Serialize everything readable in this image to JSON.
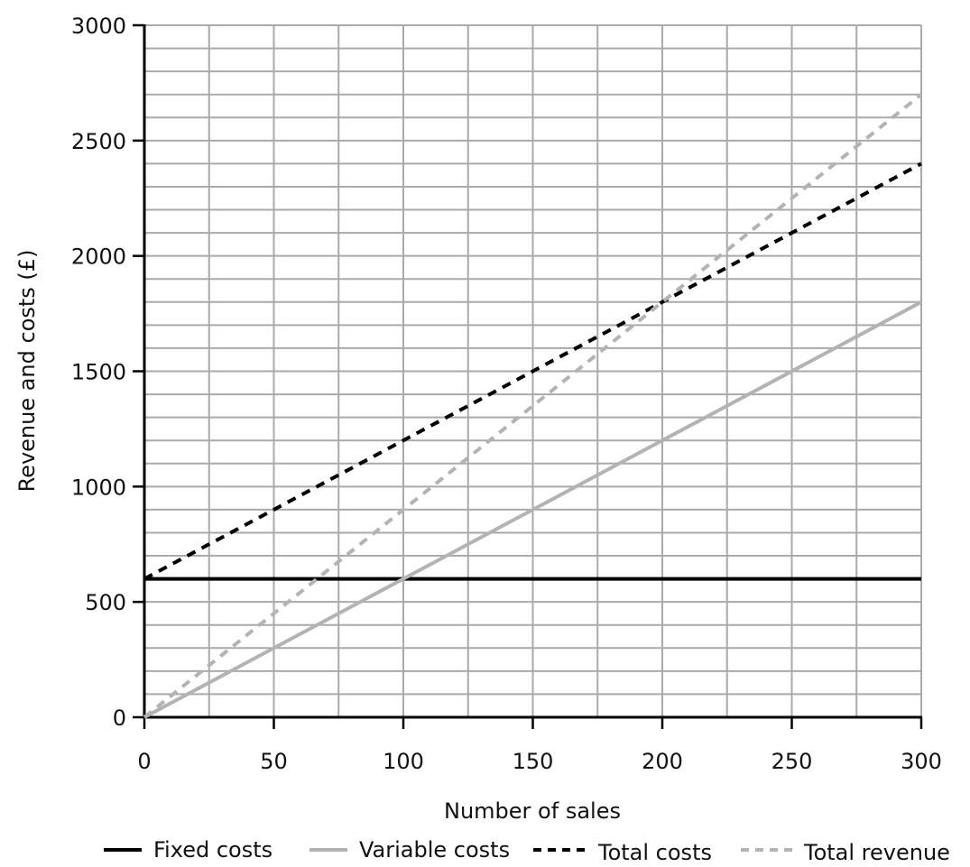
{
  "chart_data": {
    "type": "line",
    "title": "",
    "xlabel": "Number of sales",
    "ylabel": "Revenue and costs (£)",
    "xlim": [
      0,
      300
    ],
    "ylim": [
      0,
      3000
    ],
    "x_ticks": [
      0,
      50,
      100,
      150,
      200,
      250,
      300
    ],
    "y_ticks": [
      0,
      500,
      1000,
      1500,
      2000,
      2500,
      3000
    ],
    "x_minor_step": 25,
    "y_minor_step": 100,
    "grid": true,
    "legend_position": "bottom",
    "series": [
      {
        "name": "Fixed costs",
        "color": "#000000",
        "dash": "solid",
        "x": [
          0,
          300
        ],
        "y": [
          600,
          600
        ]
      },
      {
        "name": "Variable costs",
        "color": "#b3b3b3",
        "dash": "solid",
        "x": [
          0,
          300
        ],
        "y": [
          0,
          1800
        ]
      },
      {
        "name": "Total costs",
        "color": "#000000",
        "dash": "dashed",
        "x": [
          0,
          300
        ],
        "y": [
          600,
          2400
        ]
      },
      {
        "name": "Total revenue",
        "color": "#b3b3b3",
        "dash": "dashed",
        "x": [
          0,
          300
        ],
        "y": [
          0,
          2700
        ]
      }
    ]
  }
}
